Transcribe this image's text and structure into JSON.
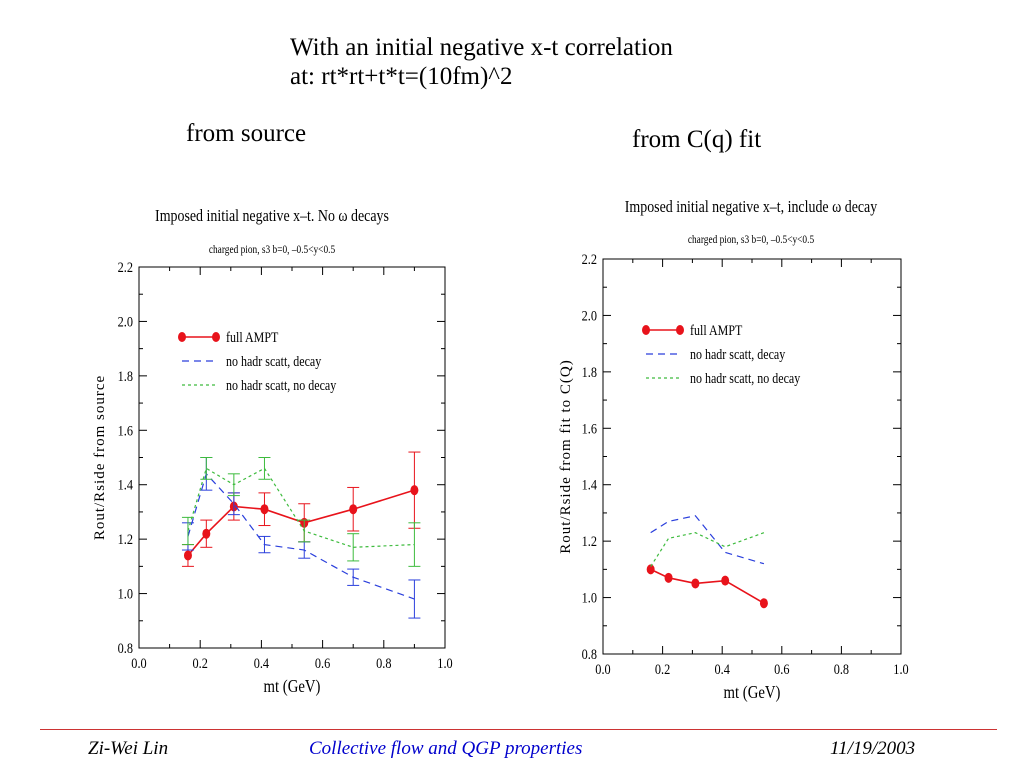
{
  "slide": {
    "title_line1": "With an initial negative x-t correlation",
    "title_line2": "at: rt*rt+t*t=(10fm)^2",
    "left_heading": "from source",
    "right_heading": "from C(q) fit"
  },
  "footer": {
    "author": "Zi-Wei Lin",
    "talk": "Collective flow and QGP properties",
    "date": "11/19/2003"
  },
  "colors": {
    "full": "#e8131b",
    "no_decay_scatt_blue": "#2a3fdc",
    "no_decay_green": "#3dbb3d",
    "footer_rule": "#cc3333",
    "footer_title": "#0000cc"
  },
  "chart_data": [
    {
      "type": "line",
      "title": "Imposed initial negative x–t. No ω decays",
      "subtitle": "charged pion, s3 b=0, –0.5<y<0.5",
      "xlabel": "mt (GeV)",
      "ylabel": "Rout/Rside from source",
      "xlim": [
        0.0,
        1.0
      ],
      "ylim": [
        0.8,
        2.2
      ],
      "xticks": [
        "0.0",
        "0.2",
        "0.4",
        "0.6",
        "0.8",
        "1.0"
      ],
      "yticks": [
        "0.8",
        "1.0",
        "1.2",
        "1.4",
        "1.6",
        "1.8",
        "2.0",
        "2.2"
      ],
      "legend": "upper-left",
      "series": [
        {
          "name": "full AMPT",
          "style": "solid-markers",
          "x": [
            0.16,
            0.22,
            0.31,
            0.41,
            0.54,
            0.7,
            0.9
          ],
          "y": [
            1.14,
            1.22,
            1.32,
            1.31,
            1.26,
            1.31,
            1.38
          ],
          "err": [
            0.04,
            0.05,
            0.05,
            0.06,
            0.07,
            0.08,
            0.14
          ]
        },
        {
          "name": "no hadr scatt, decay",
          "style": "dashed",
          "x": [
            0.16,
            0.22,
            0.31,
            0.41,
            0.54,
            0.7,
            0.9
          ],
          "y": [
            1.21,
            1.44,
            1.33,
            1.18,
            1.16,
            1.06,
            0.98
          ],
          "err": [
            0.05,
            0.06,
            0.04,
            0.03,
            0.03,
            0.03,
            0.07
          ]
        },
        {
          "name": "no hadr scatt, no decay",
          "style": "dotted",
          "x": [
            0.16,
            0.22,
            0.31,
            0.41,
            0.54,
            0.7,
            0.9
          ],
          "y": [
            1.23,
            1.46,
            1.4,
            1.46,
            1.23,
            1.17,
            1.18
          ],
          "err": [
            0.05,
            0.04,
            0.04,
            0.04,
            0.04,
            0.05,
            0.08
          ]
        }
      ]
    },
    {
      "type": "line",
      "title": "Imposed initial negative x–t, include ω decay",
      "subtitle": "charged pion, s3 b=0, –0.5<y<0.5",
      "xlabel": "mt (GeV)",
      "ylabel": "Rout/Rside from fit to C(Q)",
      "xlim": [
        0.0,
        1.0
      ],
      "ylim": [
        0.8,
        2.2
      ],
      "xticks": [
        "0.0",
        "0.2",
        "0.4",
        "0.6",
        "0.8",
        "1.0"
      ],
      "yticks": [
        "0.8",
        "1.0",
        "1.2",
        "1.4",
        "1.6",
        "1.8",
        "2.0",
        "2.2"
      ],
      "legend": "upper-left",
      "series": [
        {
          "name": "full AMPT",
          "style": "solid-markers",
          "x": [
            0.16,
            0.22,
            0.31,
            0.41,
            0.54
          ],
          "y": [
            1.1,
            1.07,
            1.05,
            1.06,
            0.98
          ]
        },
        {
          "name": "no hadr scatt, decay",
          "style": "dashed",
          "x": [
            0.16,
            0.22,
            0.31,
            0.41,
            0.54
          ],
          "y": [
            1.23,
            1.27,
            1.29,
            1.16,
            1.12
          ]
        },
        {
          "name": "no hadr scatt, no decay",
          "style": "dotted",
          "x": [
            0.16,
            0.22,
            0.31,
            0.41,
            0.54
          ],
          "y": [
            1.11,
            1.21,
            1.23,
            1.18,
            1.23
          ]
        }
      ]
    }
  ]
}
